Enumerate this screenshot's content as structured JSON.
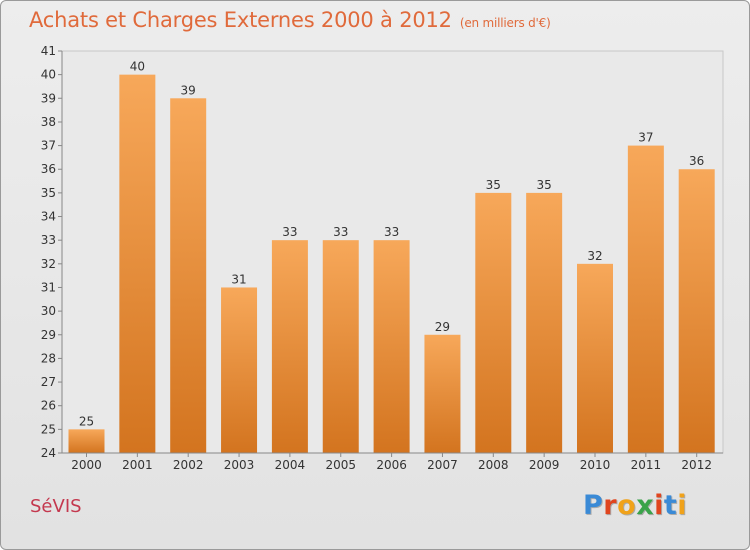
{
  "header": {
    "title": "Achats et Charges Externes 2000 à 2012",
    "subtitle": "(en milliers d'€)"
  },
  "footer": {
    "town": "SéVIS",
    "logo_letters": [
      "P",
      "r",
      "o",
      "x",
      "i",
      "t",
      "i"
    ],
    "logo_colors": [
      "#3a8ad6",
      "#e0451f",
      "#f0a21a",
      "#3aa34a",
      "#e0451f",
      "#3a8ad6",
      "#f0a21a"
    ]
  },
  "chart_data": {
    "type": "bar",
    "title": "Achats et Charges Externes 2000 à 2012",
    "subtitle": "(en milliers d'€)",
    "categories": [
      "2000",
      "2001",
      "2002",
      "2003",
      "2004",
      "2005",
      "2006",
      "2007",
      "2008",
      "2009",
      "2010",
      "2011",
      "2012"
    ],
    "values": [
      25,
      40,
      39,
      31,
      33,
      33,
      33,
      29,
      35,
      35,
      32,
      37,
      36
    ],
    "ylim": [
      24,
      41
    ],
    "yticks": [
      24,
      25,
      26,
      27,
      28,
      29,
      30,
      31,
      32,
      33,
      34,
      35,
      36,
      37,
      38,
      39,
      40,
      41
    ],
    "grid": false,
    "bar_color_top": "#f7a85a",
    "bar_color_bottom": "#d3741f"
  }
}
